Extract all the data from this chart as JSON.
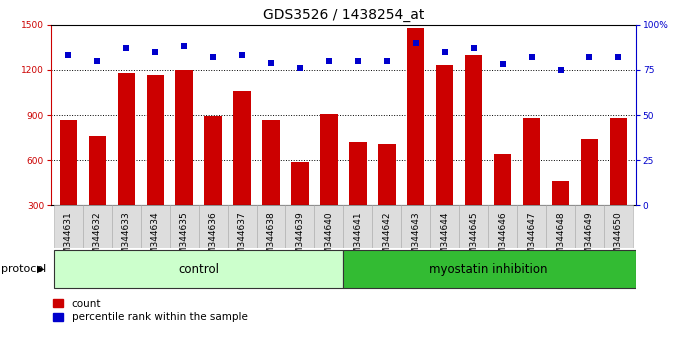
{
  "title": "GDS3526 / 1438254_at",
  "samples": [
    "GSM344631",
    "GSM344632",
    "GSM344633",
    "GSM344634",
    "GSM344635",
    "GSM344636",
    "GSM344637",
    "GSM344638",
    "GSM344639",
    "GSM344640",
    "GSM344641",
    "GSM344642",
    "GSM344643",
    "GSM344644",
    "GSM344645",
    "GSM344646",
    "GSM344647",
    "GSM344648",
    "GSM344649",
    "GSM344650"
  ],
  "counts": [
    870,
    760,
    1180,
    1165,
    1200,
    895,
    1060,
    870,
    590,
    910,
    720,
    710,
    1480,
    1230,
    1300,
    640,
    880,
    460,
    740,
    880
  ],
  "percentiles": [
    83,
    80,
    87,
    85,
    88,
    82,
    83,
    79,
    76,
    80,
    80,
    80,
    90,
    85,
    87,
    78,
    82,
    75,
    82,
    82
  ],
  "control_count": 10,
  "bar_color": "#cc0000",
  "dot_color": "#0000cc",
  "control_color_light": "#ccffcc",
  "control_color_dark": "#33bb33",
  "ylim_left": [
    300,
    1500
  ],
  "ylim_right": [
    0,
    100
  ],
  "yticks_left": [
    300,
    600,
    900,
    1200,
    1500
  ],
  "yticks_right": [
    0,
    25,
    50,
    75,
    100
  ],
  "ytick_labels_right": [
    "0",
    "25",
    "50",
    "75",
    "100%"
  ],
  "grid_values": [
    600,
    900,
    1200
  ],
  "protocol_label": "protocol",
  "control_label": "control",
  "inhibition_label": "myostatin inhibition",
  "legend_count": "count",
  "legend_percentile": "percentile rank within the sample",
  "title_fontsize": 10,
  "tick_fontsize": 6.5,
  "label_fontsize": 8.5,
  "proto_fontsize": 8,
  "legend_fontsize": 7.5
}
